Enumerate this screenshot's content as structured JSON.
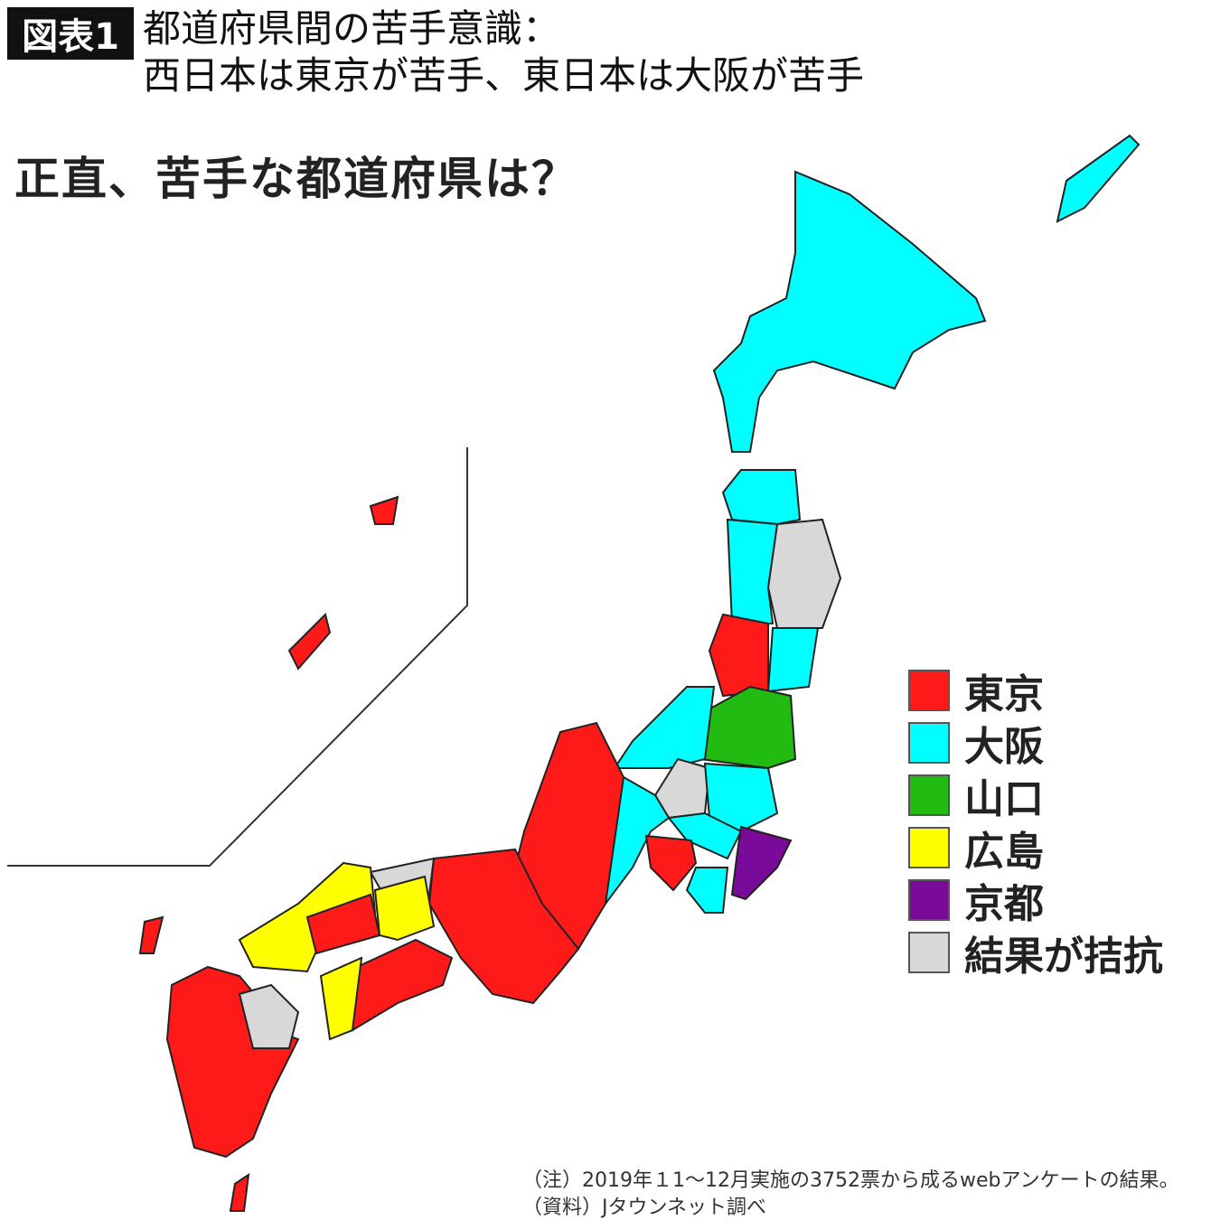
{
  "header": {
    "badge": "図表1",
    "title_line1": "都道府県間の苦手意識：",
    "title_line2": "西日本は東京が苦手、東日本は大阪が苦手"
  },
  "question": "正直、苦手な都道府県は？",
  "legend": [
    {
      "label": "東京",
      "color": "#ff1a1a"
    },
    {
      "label": "大阪",
      "color": "#00ffff"
    },
    {
      "label": "山口",
      "color": "#22bb11"
    },
    {
      "label": "広島",
      "color": "#ffff00"
    },
    {
      "label": "京都",
      "color": "#7a0a9a"
    },
    {
      "label": "結果が拮抗",
      "color": "#d8d8d8"
    }
  ],
  "notes": {
    "note": "（注）2019年１1～12月実施の3752票から成るwebアンケートの結果。",
    "source": "（資料）Jタウンネット調べ"
  }
}
